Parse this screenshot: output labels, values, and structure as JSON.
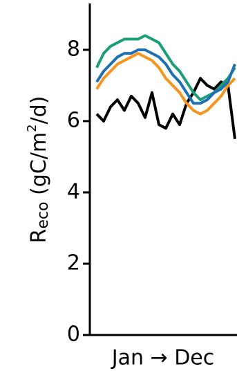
{
  "chart_data": {
    "type": "line",
    "y_label": [
      "R",
      "eco",
      " (gC/m",
      "2",
      "/d)"
    ],
    "x_label": "Jan → Dec",
    "x": [
      0,
      1,
      2,
      3,
      4,
      5,
      6,
      7,
      8,
      9,
      10,
      11,
      12,
      13,
      14,
      15,
      16,
      17,
      18,
      19,
      20
    ],
    "xlim": [
      -1,
      20.3
    ],
    "ylim": [
      0,
      9.3
    ],
    "yticks": [
      0,
      2,
      4,
      6,
      8
    ],
    "series": [
      {
        "color": "#000000",
        "values": [
          6.2,
          6.0,
          6.4,
          6.6,
          6.3,
          6.7,
          6.5,
          6.1,
          6.8,
          5.9,
          5.8,
          6.2,
          5.9,
          6.5,
          6.8,
          7.2,
          7.0,
          6.9,
          7.1,
          7.0,
          5.5
        ]
      },
      {
        "color": "#f7941d",
        "values": [
          6.9,
          7.2,
          7.4,
          7.6,
          7.7,
          7.8,
          7.9,
          7.8,
          7.7,
          7.5,
          7.2,
          7.0,
          6.8,
          6.5,
          6.3,
          6.2,
          6.3,
          6.5,
          6.7,
          7.0,
          7.2
        ]
      },
      {
        "color": "#1a9e77",
        "values": [
          7.5,
          7.9,
          8.1,
          8.2,
          8.3,
          8.3,
          8.3,
          8.4,
          8.3,
          8.2,
          7.9,
          7.6,
          7.4,
          7.1,
          6.8,
          6.6,
          6.7,
          6.8,
          7.0,
          7.2,
          7.5
        ]
      },
      {
        "color": "#1f6fb4",
        "values": [
          7.1,
          7.4,
          7.6,
          7.8,
          7.9,
          7.9,
          8.0,
          8.0,
          7.9,
          7.8,
          7.6,
          7.3,
          7.1,
          6.8,
          6.5,
          6.5,
          6.6,
          6.8,
          6.9,
          7.1,
          7.6
        ]
      }
    ]
  }
}
